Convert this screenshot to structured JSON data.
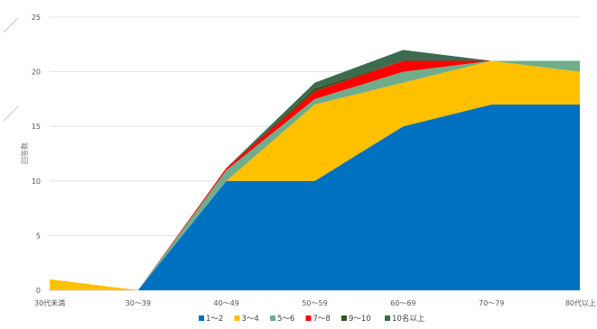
{
  "chart_data": {
    "type": "area",
    "stacked": true,
    "categories": [
      "30代未満",
      "30〜39",
      "40〜49",
      "50〜59",
      "60〜69",
      "70〜79",
      "80代以上"
    ],
    "ylabel": "回答数",
    "ylim": [
      0,
      25
    ],
    "yticks": [
      "0",
      "5",
      "10",
      "15",
      "20",
      "25"
    ],
    "grid": true,
    "legend_position": "bottom",
    "series": [
      {
        "name": "1〜2",
        "color": "#0070C0",
        "values": [
          0,
          0,
          10,
          10,
          15,
          17,
          17
        ]
      },
      {
        "name": "3〜4",
        "color": "#FFC000",
        "values": [
          1,
          0,
          0,
          7,
          4,
          4,
          3
        ]
      },
      {
        "name": "5〜6",
        "color": "#70AD8A",
        "values": [
          0,
          0,
          1,
          0.5,
          1,
          0,
          1
        ]
      },
      {
        "name": "7〜8",
        "color": "#FF0000",
        "values": [
          0,
          0,
          0.2,
          0.7,
          1,
          0,
          0
        ]
      },
      {
        "name": "9〜10",
        "color": "#375623",
        "values": [
          0,
          0,
          0,
          0.3,
          0,
          0,
          0
        ]
      },
      {
        "name": "10名以上",
        "color": "#3E6B4F",
        "values": [
          0,
          0,
          0,
          0.5,
          1,
          0,
          0
        ]
      }
    ]
  }
}
